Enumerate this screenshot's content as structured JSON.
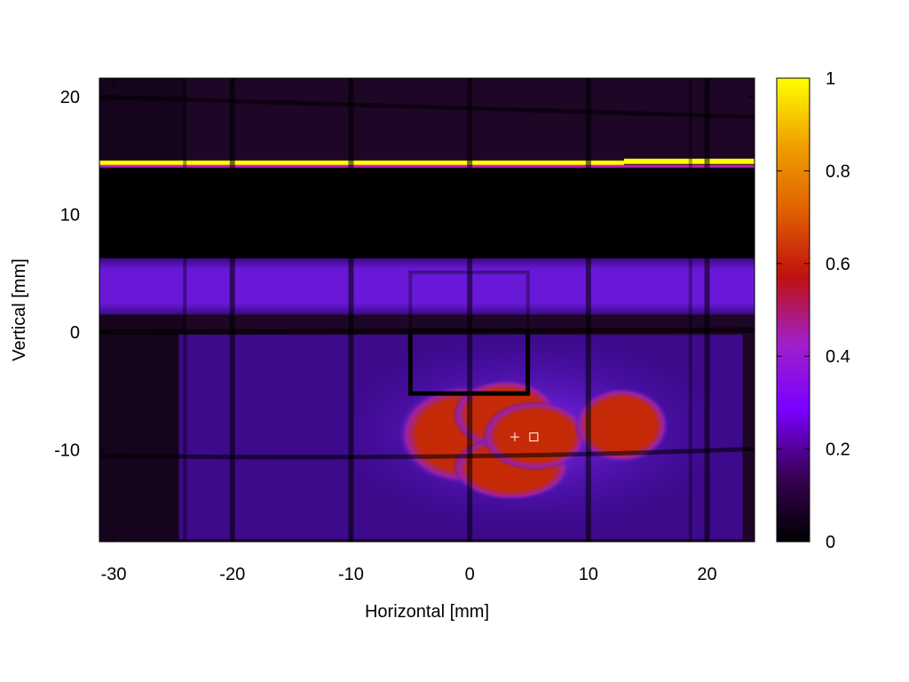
{
  "chart_data": {
    "type": "heatmap",
    "xlabel": "Horizontal [mm]",
    "ylabel": "Vertical [mm]",
    "xlim": [
      -31.2,
      24
    ],
    "ylim": [
      -17.8,
      21.6
    ],
    "x_ticks": [
      -30,
      -20,
      -10,
      0,
      10,
      20
    ],
    "y_ticks": [
      -10,
      0,
      10,
      20
    ],
    "x_tick_labels": [
      "-30",
      "-20",
      "-10",
      "0",
      "10",
      "20"
    ],
    "y_tick_labels": [
      "-10",
      "0",
      "10",
      "20"
    ],
    "colorbar": {
      "range": [
        0,
        1
      ],
      "ticks": [
        0,
        0.2,
        0.4,
        0.6,
        0.8,
        1
      ],
      "tick_labels": [
        "0",
        "0.2",
        "0.4",
        "0.6",
        "0.8",
        "1"
      ],
      "colormap": [
        "#000000",
        "#3a0055",
        "#7a00ff",
        "#a020c8",
        "#c01010",
        "#e06000",
        "#f0a000",
        "#ffff00"
      ]
    },
    "colors": {
      "background": "#1e0626",
      "dark_band": "#000000",
      "purple_band": "#6a18d0",
      "hot_spot": "#c42a08",
      "bright_line": "#ffff00"
    },
    "features": {
      "bright_strip_y": [
        14.0,
        14.6
      ],
      "dark_band_y": [
        6.3,
        13.9
      ],
      "purple_band_y": [
        1.5,
        6.3
      ],
      "hot_spot": {
        "x": [
          -4.5,
          16
        ],
        "y": [
          -13.5,
          -4.2
        ],
        "peak": 0.55
      }
    },
    "markers": [
      {
        "symbol": "+",
        "x": 3.8,
        "y": -8.9
      },
      {
        "symbol": "square",
        "x": 5.4,
        "y": -8.9
      }
    ]
  }
}
